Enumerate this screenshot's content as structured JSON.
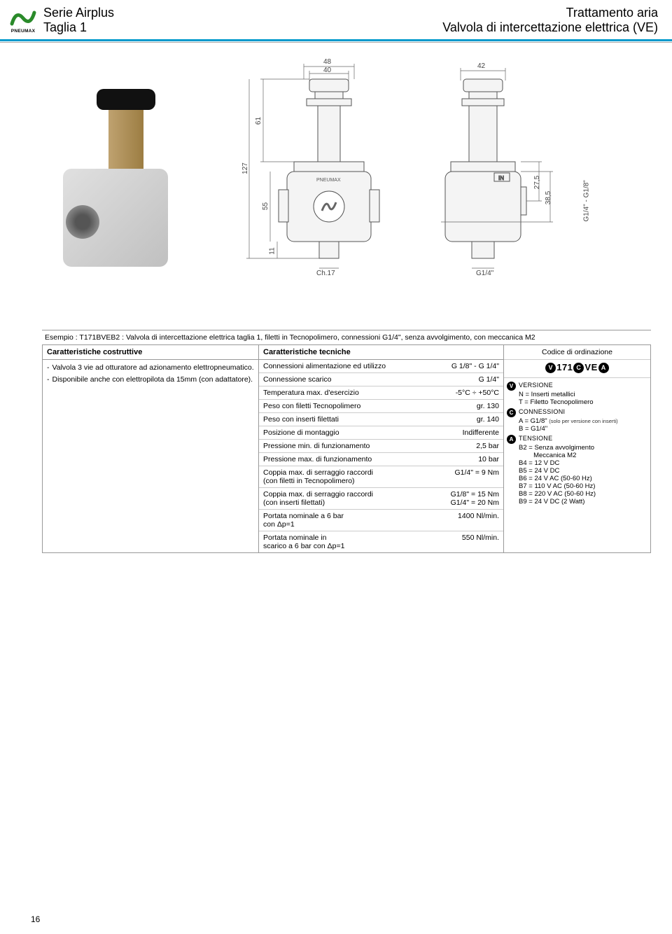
{
  "header": {
    "logo_text": "PNEUMAX",
    "series": "Serie Airplus",
    "size": "Taglia 1",
    "treatment": "Trattamento aria",
    "product": "Valvola di intercettazione elettrica (VE)",
    "header_bar_color": "#0099cc"
  },
  "drawings": {
    "front": {
      "width_top": "48",
      "width_knob": "40",
      "height_upper": "61",
      "height_total": "127",
      "height_body": "55",
      "depth_base": "11",
      "wrench": "Ch.17"
    },
    "side": {
      "width": "42",
      "height_offset": "27,5",
      "depth": "38,5",
      "port_label": "G1/4\" - G1/8\"",
      "bottom_port": "G1/4\""
    }
  },
  "example": "Esempio : T171BVEB2 : Valvola di intercettazione elettrica taglia 1, filetti in Tecnopolimero, connessioni G1/4\", senza avvolgimento, con meccanica M2",
  "constructive": {
    "title": "Caratteristiche costruttive",
    "items": [
      "Valvola 3 vie ad otturatore ad azionamento elettropneumatico.",
      "Disponibile anche con elettropilota da 15mm (con adattatore)."
    ]
  },
  "technical": {
    "title": "Caratteristiche tecniche",
    "rows": [
      {
        "k": "Connessioni alimentazione ed utilizzo",
        "v": "G 1/8\" - G 1/4\""
      },
      {
        "k": "Connessione scarico",
        "v": "G 1/4\""
      },
      {
        "k": "Temperatura max. d'esercizio",
        "v": "-5°C ÷ +50°C"
      },
      {
        "k": "Peso con filetti Tecnopolimero",
        "v": "gr. 130"
      },
      {
        "k": "Peso con inserti filettati",
        "v": "gr. 140"
      },
      {
        "k": "Posizione di montaggio",
        "v": "Indifferente"
      },
      {
        "k": "Pressione min. di funzionamento",
        "v": "2,5 bar"
      },
      {
        "k": "Pressione max. di funzionamento",
        "v": "10 bar"
      },
      {
        "k": "Coppia max. di serraggio raccordi\n(con filetti in Tecnopolimero)",
        "v": "G1/4\" = 9 Nm"
      },
      {
        "k": "Coppia max. di serraggio raccordi\n(con inserti filettati)",
        "v": "G1/8\" = 15 Nm\nG1/4\" = 20 Nm"
      },
      {
        "k": "Portata nominale a 6 bar\ncon Δp=1",
        "v": "1400 Nl/min."
      },
      {
        "k": "Portata nominale in\nscarico a 6 bar con Δp=1",
        "v": "550 Nl/min."
      }
    ]
  },
  "order": {
    "title": "Codice di ordinazione",
    "code_prefix": "171",
    "code_mid": "VE",
    "sections": [
      {
        "letter": "V",
        "title": "VERSIONE",
        "lines": [
          "N = Inserti metallici",
          "T = Filetto Tecnopolimero"
        ]
      },
      {
        "letter": "C",
        "title": "CONNESSIONI",
        "lines": [
          "A = G1/8\" <span class=\"tiny-note\">(solo per versione con inserti)</span>",
          "B = G1/4\""
        ]
      },
      {
        "letter": "A",
        "title": "TENSIONE",
        "lines": [
          "B2 = Senza avvolgimento\n&nbsp;&nbsp;&nbsp;&nbsp;&nbsp;&nbsp;&nbsp;&nbsp;Meccanica M2",
          "B4 = 12 V DC",
          "B5 = 24 V DC",
          "B6 = 24 V AC (50-60 Hz)",
          "B7 = 110 V AC (50-60 Hz)",
          "B8 = 220 V AC (50-60 Hz)",
          "B9 = 24 V DC (2 Watt)"
        ]
      }
    ]
  },
  "page_number": "16",
  "colors": {
    "border": "#999999",
    "row_border": "#cccccc",
    "text": "#000000"
  }
}
